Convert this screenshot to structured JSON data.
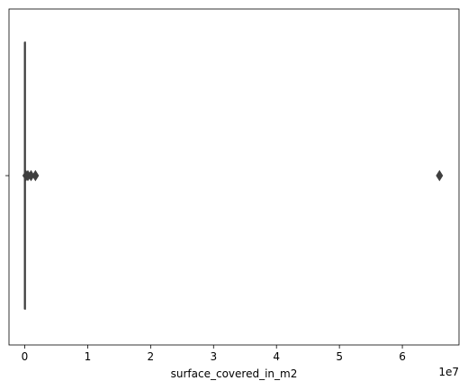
{
  "chart_data": {
    "type": "boxplot",
    "orientation": "horizontal",
    "xlabel": "surface_covered_in_m2",
    "ylabel": "",
    "x_scale_label": "1e7",
    "xlim": [
      -0.25,
      6.9
    ],
    "x_ticks": [
      0,
      1,
      2,
      3,
      4,
      5,
      6
    ],
    "x_tick_labels": [
      "0",
      "1",
      "2",
      "3",
      "4",
      "5",
      "6"
    ],
    "y_tick_labels": [
      ""
    ],
    "grid": false,
    "box": {
      "min": 0,
      "q1": 0,
      "median": 0,
      "q3": 0.002,
      "max": 0.006
    },
    "outliers": [
      0.02,
      0.05,
      0.1,
      0.17,
      6.59
    ]
  },
  "colors": {
    "box_line": "#3f3f3f",
    "axis": "#000000",
    "background": "#ffffff"
  }
}
